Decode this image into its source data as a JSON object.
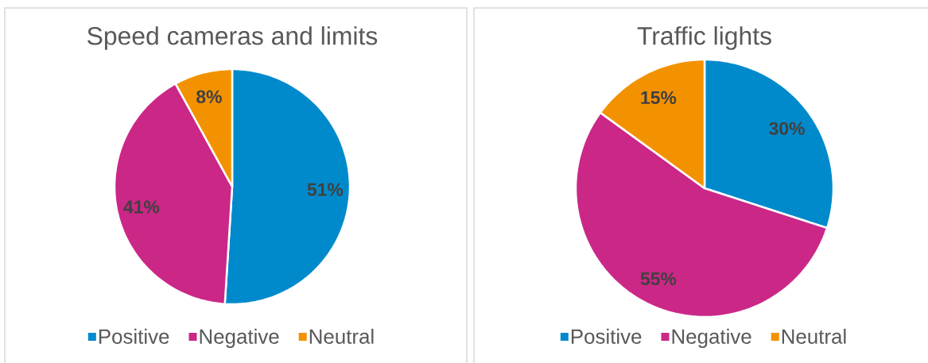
{
  "chart_data": [
    {
      "type": "pie",
      "title": "Speed cameras and limits",
      "categories": [
        "Positive",
        "Negative",
        "Neutral"
      ],
      "values": [
        51,
        41,
        8
      ],
      "colors": [
        "#008acb",
        "#cb2787",
        "#f39200"
      ],
      "value_labels": [
        "51%",
        "41%",
        "8%"
      ],
      "legend": "bottom"
    },
    {
      "type": "pie",
      "title": "Traffic lights",
      "categories": [
        "Positive",
        "Negative",
        "Neutral"
      ],
      "values": [
        30,
        55,
        15
      ],
      "colors": [
        "#008acb",
        "#cb2787",
        "#f39200"
      ],
      "value_labels": [
        "30%",
        "55%",
        "15%"
      ],
      "legend": "bottom"
    }
  ]
}
